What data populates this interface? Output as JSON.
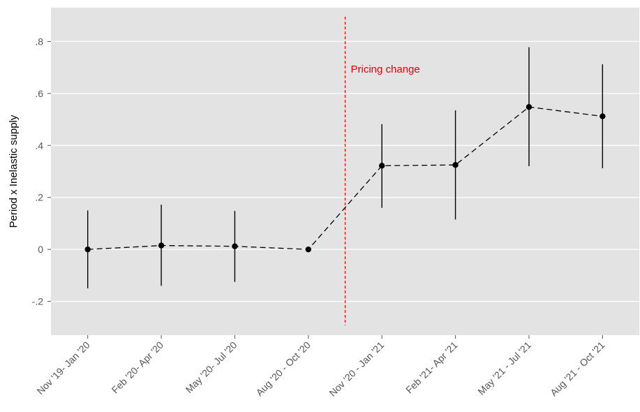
{
  "chart_data": {
    "type": "line",
    "title": "",
    "xlabel": "",
    "ylabel": "Period x Inelastic supply",
    "ylim": [
      -0.33,
      0.93
    ],
    "yticks": [
      {
        "value": 0.8,
        "label": ".8"
      },
      {
        "value": 0.6,
        "label": ".6"
      },
      {
        "value": 0.4,
        "label": ".4"
      },
      {
        "value": 0.2,
        "label": ".2"
      },
      {
        "value": 0.0,
        "label": "0"
      },
      {
        "value": -0.2,
        "label": "-.2"
      }
    ],
    "categories": [
      "Nov '19- Jan '20",
      "Feb '20- Apr '20",
      "May '20- Jul '20",
      "Aug '20 - Oct '20",
      "Nov '20 - Jan '21",
      "Feb '21- Apr '21",
      "May '21 - Jul '21",
      "Aug '21 - Oct '21"
    ],
    "series": [
      {
        "values": [
          0.0,
          0.015,
          0.012,
          0.0,
          0.322,
          0.325,
          0.548,
          0.512
        ],
        "ci_low": [
          -0.15,
          -0.14,
          -0.125,
          0.0,
          0.16,
          0.115,
          0.32,
          0.312
        ],
        "ci_high": [
          0.15,
          0.172,
          0.148,
          0.0,
          0.482,
          0.535,
          0.778,
          0.712
        ]
      }
    ],
    "annotation": {
      "text": "Pricing change",
      "x_between": [
        3,
        4
      ],
      "color": "#e8000b"
    },
    "grid": true,
    "colors": {
      "panel": "#e3e3e3",
      "grid": "#ffffff",
      "series": "#000000",
      "annotation": "#e8000b"
    }
  }
}
